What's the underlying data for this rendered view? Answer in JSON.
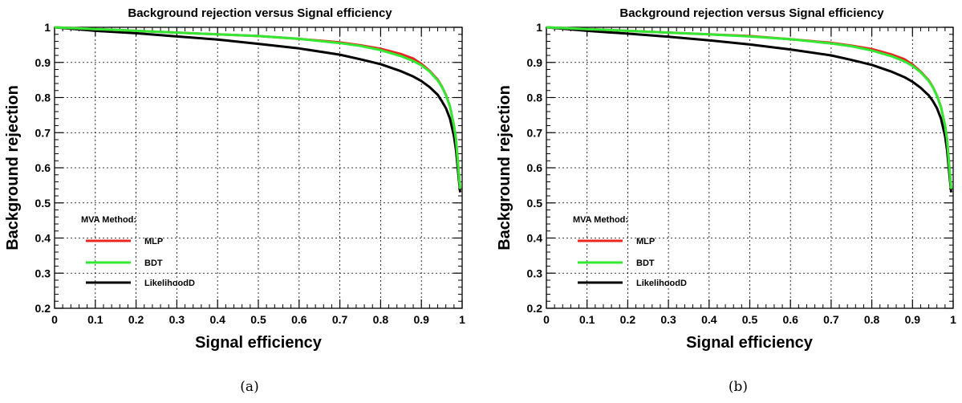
{
  "chart_data": [
    {
      "type": "line",
      "panel_caption": "(a)",
      "title": "Background rejection versus Signal efficiency",
      "xlabel": "Signal efficiency",
      "ylabel": "Background rejection",
      "xlim": [
        0,
        1
      ],
      "ylim": [
        0.2,
        1
      ],
      "xticks": [
        "0",
        "0.1",
        "0.2",
        "0.3",
        "0.4",
        "0.5",
        "0.6",
        "0.7",
        "0.8",
        "0.9",
        "1"
      ],
      "yticks": [
        "0.2",
        "0.3",
        "0.4",
        "0.5",
        "0.6",
        "0.7",
        "0.8",
        "0.9",
        "1"
      ],
      "grid": true,
      "legend_title": "MVA Method:",
      "legend_position": "bottom-left",
      "series": [
        {
          "name": "MLP",
          "color": "#e8251f",
          "x": [
            0,
            0.1,
            0.2,
            0.3,
            0.4,
            0.5,
            0.6,
            0.7,
            0.75,
            0.8,
            0.85,
            0.88,
            0.9,
            0.92,
            0.94,
            0.95,
            0.96,
            0.97,
            0.98,
            0.985,
            0.99,
            0.995
          ],
          "y": [
            1.0,
            0.995,
            0.99,
            0.985,
            0.98,
            0.975,
            0.967,
            0.957,
            0.949,
            0.939,
            0.924,
            0.911,
            0.896,
            0.876,
            0.851,
            0.832,
            0.808,
            0.775,
            0.72,
            0.68,
            0.61,
            0.54
          ]
        },
        {
          "name": "BDT",
          "color": "#33e833",
          "x": [
            0,
            0.1,
            0.2,
            0.3,
            0.4,
            0.5,
            0.6,
            0.7,
            0.75,
            0.8,
            0.85,
            0.88,
            0.9,
            0.92,
            0.94,
            0.95,
            0.96,
            0.97,
            0.98,
            0.985,
            0.99,
            0.995
          ],
          "y": [
            1.0,
            0.995,
            0.99,
            0.985,
            0.98,
            0.975,
            0.967,
            0.955,
            0.947,
            0.935,
            0.918,
            0.904,
            0.892,
            0.874,
            0.849,
            0.831,
            0.807,
            0.775,
            0.72,
            0.68,
            0.61,
            0.54
          ]
        },
        {
          "name": "LikelihoodD",
          "color": "#000000",
          "x": [
            0,
            0.1,
            0.2,
            0.3,
            0.4,
            0.5,
            0.6,
            0.7,
            0.75,
            0.8,
            0.85,
            0.88,
            0.9,
            0.92,
            0.94,
            0.95,
            0.96,
            0.97,
            0.98,
            0.985,
            0.99,
            0.995
          ],
          "y": [
            1.0,
            0.99,
            0.983,
            0.974,
            0.965,
            0.953,
            0.94,
            0.922,
            0.909,
            0.895,
            0.875,
            0.86,
            0.847,
            0.83,
            0.808,
            0.79,
            0.77,
            0.74,
            0.69,
            0.65,
            0.59,
            0.53
          ]
        }
      ]
    },
    {
      "type": "line",
      "panel_caption": "(b)",
      "title": "Background rejection versus Signal efficiency",
      "xlabel": "Signal efficiency",
      "ylabel": "Background rejection",
      "xlim": [
        0,
        1
      ],
      "ylim": [
        0.2,
        1
      ],
      "xticks": [
        "0",
        "0.1",
        "0.2",
        "0.3",
        "0.4",
        "0.5",
        "0.6",
        "0.7",
        "0.8",
        "0.9",
        "1"
      ],
      "yticks": [
        "0.2",
        "0.3",
        "0.4",
        "0.5",
        "0.6",
        "0.7",
        "0.8",
        "0.9",
        "1"
      ],
      "grid": true,
      "legend_title": "MVA Method:",
      "legend_position": "bottom-left",
      "series": [
        {
          "name": "MLP",
          "color": "#e8251f",
          "x": [
            0,
            0.1,
            0.2,
            0.3,
            0.4,
            0.5,
            0.6,
            0.7,
            0.75,
            0.8,
            0.85,
            0.88,
            0.9,
            0.92,
            0.94,
            0.95,
            0.96,
            0.97,
            0.98,
            0.985,
            0.99,
            0.995
          ],
          "y": [
            1.0,
            0.995,
            0.99,
            0.985,
            0.98,
            0.975,
            0.966,
            0.956,
            0.948,
            0.938,
            0.922,
            0.909,
            0.894,
            0.874,
            0.849,
            0.83,
            0.806,
            0.773,
            0.72,
            0.68,
            0.61,
            0.54
          ]
        },
        {
          "name": "BDT",
          "color": "#33e833",
          "x": [
            0,
            0.1,
            0.2,
            0.3,
            0.4,
            0.5,
            0.6,
            0.7,
            0.75,
            0.8,
            0.85,
            0.88,
            0.9,
            0.92,
            0.94,
            0.95,
            0.96,
            0.97,
            0.98,
            0.985,
            0.99,
            0.995
          ],
          "y": [
            1.0,
            0.995,
            0.99,
            0.985,
            0.98,
            0.974,
            0.966,
            0.954,
            0.946,
            0.934,
            0.917,
            0.903,
            0.89,
            0.872,
            0.847,
            0.829,
            0.805,
            0.773,
            0.72,
            0.68,
            0.61,
            0.54
          ]
        },
        {
          "name": "LikelihoodD",
          "color": "#000000",
          "x": [
            0,
            0.1,
            0.2,
            0.3,
            0.4,
            0.5,
            0.6,
            0.7,
            0.75,
            0.8,
            0.85,
            0.88,
            0.9,
            0.92,
            0.94,
            0.95,
            0.96,
            0.97,
            0.98,
            0.985,
            0.99,
            0.995
          ],
          "y": [
            1.0,
            0.99,
            0.982,
            0.973,
            0.963,
            0.951,
            0.937,
            0.92,
            0.907,
            0.893,
            0.873,
            0.858,
            0.845,
            0.828,
            0.806,
            0.79,
            0.77,
            0.74,
            0.69,
            0.65,
            0.59,
            0.53
          ]
        }
      ]
    }
  ]
}
